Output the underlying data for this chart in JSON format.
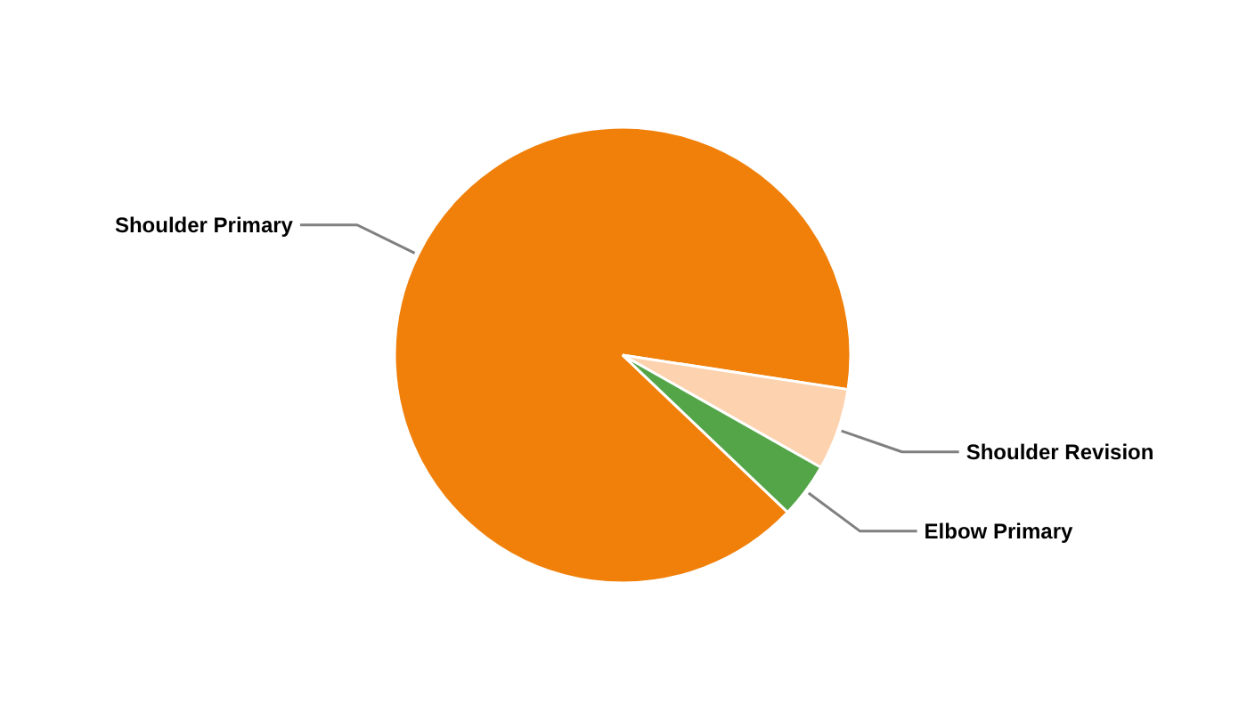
{
  "chart_data": {
    "type": "pie",
    "categories": [
      "Shoulder Primary",
      "Shoulder Revision",
      "Elbow Primary"
    ],
    "values": [
      90.3,
      5.8,
      3.9
    ],
    "colors": [
      "#f0800a",
      "#fdd2ae",
      "#53a548"
    ]
  }
}
